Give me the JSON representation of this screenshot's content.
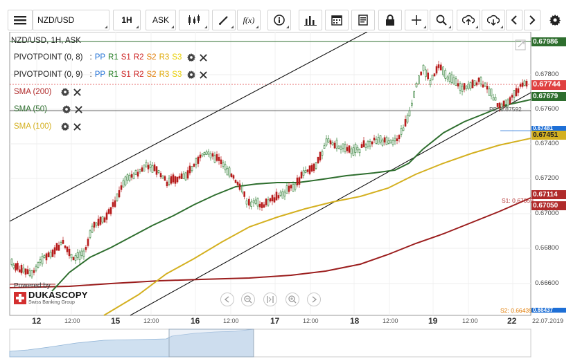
{
  "toolbar": {
    "menu_icon": "hamburger-menu-icon",
    "symbol": "NZD/USD",
    "timeframe": "1H",
    "side": "ASK",
    "buttons": [
      "candle-type-icon",
      "draw-line-icon",
      "function-icon",
      "info-icon",
      "volume-bars-icon",
      "calendar-icon",
      "report-icon",
      "lock-icon",
      "crosshair-icon",
      "zoom-icon",
      "upload-icon",
      "download-icon",
      "arrow-left-icon",
      "arrow-right-icon",
      "settings-gear-icon"
    ],
    "function_label": "f(x)"
  },
  "legend": {
    "title": "NZD/USD, 1H, ASK",
    "pivot1": {
      "name": "PIVOTPOINT (0, 8)"
    },
    "pivot2": {
      "name": "PIVOTPOINT (0, 9)"
    },
    "pivot_keys": [
      {
        "label": "PP",
        "color": "#1e6fd6"
      },
      {
        "label": "R1",
        "color": "#1f7a1f"
      },
      {
        "label": "S1",
        "color": "#cc1f1f"
      },
      {
        "label": "R2",
        "color": "#cc1f1f"
      },
      {
        "label": "S2",
        "color": "#e07a00"
      },
      {
        "label": "R3",
        "color": "#e0a800"
      },
      {
        "label": "S3",
        "color": "#e8cf00"
      }
    ],
    "sma200": {
      "label": "SMA (200)",
      "color": "#b02a2a"
    },
    "sma50": {
      "label": "SMA (50)",
      "color": "#2e6e2e"
    },
    "sma100": {
      "label": "SMA (100)",
      "color": "#d4b020"
    }
  },
  "price_axis": {
    "ticks": [
      "0.67800",
      "0.67600",
      "0.67400",
      "0.67200",
      "0.67000",
      "0.66800",
      "0.66600"
    ],
    "top_hidden": "0.67986"
  },
  "price_tags": [
    {
      "value": "0.67986",
      "color": "#2e6e2e"
    },
    {
      "value": "0.67744",
      "color": "#e04040"
    },
    {
      "value": "0.67679",
      "color": "#2e6e2e"
    },
    {
      "value": "0.67481",
      "color": "#1e6fd6"
    },
    {
      "value": "0.67451",
      "color": "#d4b020"
    },
    {
      "value": "0.67114",
      "color": "#b02a2a"
    },
    {
      "value": "0.67050",
      "color": "#b02a2a"
    }
  ],
  "chart_labels": {
    "pp_label": "PP: 0.67592",
    "s1_label": "S1: 0.67059",
    "s2_label": "S2: 0.66439",
    "bottom_tag": "0.66437"
  },
  "time_axis": [
    {
      "label": "12",
      "big": true
    },
    {
      "label": "12:00",
      "big": false
    },
    {
      "label": "15",
      "big": true
    },
    {
      "label": "12:00",
      "big": false
    },
    {
      "label": "16",
      "big": true
    },
    {
      "label": "12:00",
      "big": false
    },
    {
      "label": "17",
      "big": true
    },
    {
      "label": "12:00",
      "big": false
    },
    {
      "label": "18",
      "big": true
    },
    {
      "label": "12:00",
      "big": false
    },
    {
      "label": "19",
      "big": true
    },
    {
      "label": "12:00",
      "big": false
    },
    {
      "label": "22",
      "big": true
    },
    {
      "label": "22.07.2019",
      "big": false
    }
  ],
  "logo": {
    "powered": "Powered by",
    "brand": "DUKASCOPY",
    "sub": "Swiss Banking Group"
  },
  "nav_controls": [
    "rewind-icon",
    "zoom-out-icon",
    "fit-icon",
    "zoom-in-icon",
    "play-icon"
  ],
  "colors": {
    "candle_up": "#2e7d32",
    "candle_down": "#b71c1c",
    "channel": "#111111",
    "navigator_fill": "#cfe0f0"
  }
}
